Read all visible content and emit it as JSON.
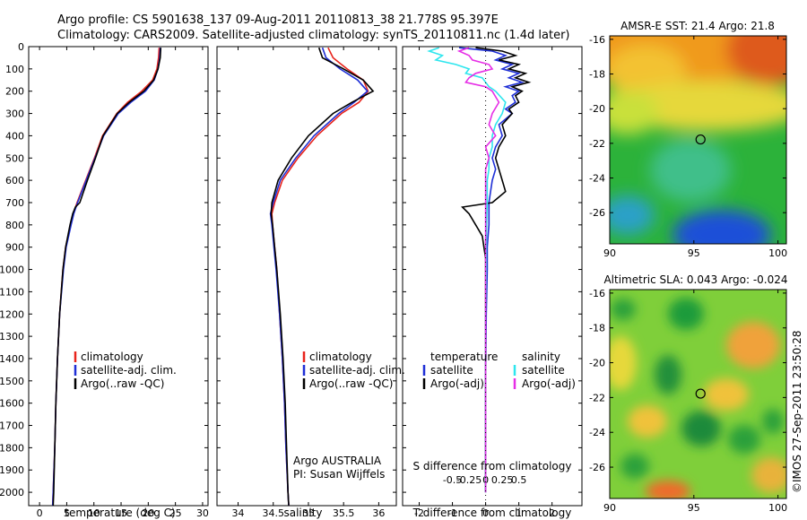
{
  "header": {
    "line1": "Argo profile: CS 5901638_137 09-Aug-2011 20110813_38 21.778S 95.397E",
    "line2": "Climatology: CARS2009. Satellite-adjusted climatology: synTS_20110811.nc (1.4d later)"
  },
  "colors": {
    "climatology": "#e8241c",
    "satellite": "#1f2fd6",
    "argo": "#000000",
    "sat_salt": "#2ee6ee",
    "argo_salt": "#e62ee6"
  },
  "chart_data": [
    {
      "type": "line",
      "panel": "temperature",
      "xlabel": "temperature (deg C)",
      "ylabel": "",
      "xlim": [
        -2,
        31
      ],
      "ylim": [
        2060,
        0
      ],
      "xticks": [
        0,
        5,
        10,
        15,
        20,
        25,
        30
      ],
      "yticks": [
        0,
        100,
        200,
        300,
        400,
        500,
        600,
        700,
        800,
        900,
        1000,
        1100,
        1200,
        1300,
        1400,
        1500,
        1600,
        1700,
        1800,
        1900,
        2000
      ],
      "legend": [
        "climatology",
        "satellite-adj. clim.",
        "Argo(..raw -QC)"
      ],
      "legend_position": "lower-right",
      "series": [
        {
          "name": "climatology",
          "color": "#e8241c",
          "depth": [
            5,
            50,
            100,
            150,
            200,
            250,
            300,
            400,
            500,
            600,
            700,
            750,
            800,
            900,
            1000,
            1200,
            1400,
            1600,
            1800,
            2000,
            2060
          ],
          "values": [
            22.0,
            21.9,
            21.6,
            20.8,
            18.8,
            16.2,
            14.2,
            11.6,
            10.1,
            8.5,
            6.9,
            6.2,
            5.7,
            4.8,
            4.3,
            3.7,
            3.3,
            3.0,
            2.8,
            2.5,
            2.4
          ]
        },
        {
          "name": "satellite-adj. clim.",
          "color": "#1f2fd6",
          "depth": [
            5,
            50,
            100,
            150,
            200,
            250,
            300,
            400,
            500,
            600,
            700,
            750,
            800,
            900,
            1000,
            1200,
            1400,
            1600,
            1800,
            2000,
            2060
          ],
          "values": [
            22.2,
            22.1,
            21.8,
            21.1,
            19.5,
            16.8,
            14.5,
            11.8,
            10.2,
            8.6,
            7.0,
            6.3,
            5.8,
            4.9,
            4.4,
            3.7,
            3.3,
            3.0,
            2.8,
            2.5,
            2.4
          ]
        },
        {
          "name": "Argo(..raw -QC)",
          "color": "#000000",
          "depth": [
            5,
            50,
            100,
            150,
            200,
            250,
            300,
            400,
            500,
            600,
            700,
            720,
            750,
            800,
            900,
            1000,
            1200,
            1400,
            1600,
            1800,
            2000,
            2060
          ],
          "values": [
            22.3,
            22.2,
            21.8,
            21.0,
            19.2,
            16.5,
            14.3,
            11.7,
            10.3,
            8.8,
            7.4,
            6.6,
            6.1,
            5.6,
            4.8,
            4.3,
            3.7,
            3.3,
            3.0,
            2.8,
            2.6,
            2.5
          ]
        }
      ]
    },
    {
      "type": "line",
      "panel": "salinity",
      "xlabel": "salinity",
      "xlim": [
        33.7,
        36.25
      ],
      "ylim": [
        2060,
        0
      ],
      "xticks": [
        34,
        34.5,
        35,
        35.5,
        36
      ],
      "legend": [
        "climatology",
        "satellite-adj. clim.",
        "Argo(..raw -QC)"
      ],
      "legend_position": "lower-right",
      "annotation": [
        "Argo AUSTRALIA",
        "PI: Susan Wijffels"
      ],
      "series": [
        {
          "name": "climatology",
          "color": "#e8241c",
          "depth": [
            5,
            50,
            100,
            150,
            200,
            250,
            300,
            400,
            500,
            600,
            700,
            750,
            800,
            900,
            1000,
            1200,
            1400,
            1600,
            1800,
            2000,
            2060
          ],
          "values": [
            35.28,
            35.35,
            35.55,
            35.78,
            35.85,
            35.72,
            35.47,
            35.12,
            34.85,
            34.63,
            34.52,
            34.48,
            34.49,
            34.52,
            34.55,
            34.59,
            34.63,
            34.66,
            34.68,
            34.71,
            34.72
          ]
        },
        {
          "name": "satellite-adj. clim.",
          "color": "#1f2fd6",
          "depth": [
            5,
            50,
            100,
            150,
            200,
            250,
            300,
            400,
            500,
            600,
            700,
            750,
            800,
            900,
            1000,
            1200,
            1400,
            1600,
            1800,
            2000,
            2060
          ],
          "values": [
            35.2,
            35.25,
            35.45,
            35.7,
            35.84,
            35.65,
            35.43,
            35.08,
            34.82,
            34.6,
            34.5,
            34.46,
            34.48,
            34.51,
            34.54,
            34.59,
            34.63,
            34.66,
            34.68,
            34.71,
            34.72
          ]
        },
        {
          "name": "Argo(..raw -QC)",
          "color": "#000000",
          "depth": [
            5,
            50,
            100,
            150,
            200,
            250,
            300,
            400,
            500,
            600,
            700,
            750,
            800,
            900,
            1000,
            1200,
            1400,
            1600,
            1800,
            2000,
            2060
          ],
          "values": [
            35.15,
            35.2,
            35.5,
            35.78,
            35.92,
            35.62,
            35.35,
            35.0,
            34.76,
            34.57,
            34.48,
            34.47,
            34.49,
            34.52,
            34.55,
            34.6,
            34.64,
            34.67,
            34.69,
            34.71,
            34.72
          ]
        }
      ]
    },
    {
      "type": "line",
      "panel": "difference",
      "xlabel": "T difference from climatology",
      "xlabel_top": "S difference from climatology",
      "xlim": [
        -2.5,
        2.9
      ],
      "ylim": [
        2060,
        0
      ],
      "xticks_T": [
        -2,
        -1,
        0,
        1,
        2
      ],
      "xticks_S": [
        -0.5,
        -0.25,
        0,
        0.25,
        0.5
      ],
      "legend_temperature_title": "temperature",
      "legend_salinity_title": "salinity",
      "legend_temperature": [
        "satellite",
        "Argo(-adj)"
      ],
      "legend_salinity": [
        "satellite",
        "Argo(-adj)"
      ],
      "series": [
        {
          "name": "satellite",
          "color": "#1f2fd6",
          "depth": [
            5,
            20,
            40,
            60,
            80,
            100,
            120,
            140,
            160,
            180,
            200,
            220,
            250,
            280,
            300,
            350,
            400,
            450,
            500,
            550,
            600,
            650,
            700,
            800,
            900,
            1000,
            1200,
            1500,
            2000
          ],
          "values": [
            -0.8,
            0.2,
            0.6,
            0.3,
            0.8,
            0.5,
            1.0,
            0.7,
            1.1,
            0.6,
            1.0,
            0.8,
            0.9,
            0.6,
            0.8,
            0.4,
            0.5,
            0.3,
            0.2,
            0.3,
            0.2,
            0.15,
            0.1,
            0.1,
            0.05,
            0.05,
            0.02,
            0.0,
            0.0
          ]
        },
        {
          "name": "Argo(-adj)",
          "color": "#000000",
          "depth": [
            5,
            20,
            40,
            60,
            80,
            100,
            120,
            140,
            160,
            180,
            200,
            220,
            250,
            280,
            300,
            350,
            400,
            450,
            500,
            550,
            600,
            650,
            700,
            720,
            750,
            800,
            850,
            900,
            950,
            1000,
            1200,
            1500,
            2000
          ],
          "values": [
            -0.3,
            0.5,
            0.9,
            0.4,
            1.0,
            0.7,
            1.2,
            0.9,
            1.3,
            0.8,
            1.1,
            0.9,
            1.0,
            0.7,
            0.8,
            0.5,
            0.6,
            0.4,
            0.3,
            0.4,
            0.5,
            0.6,
            0.2,
            -0.7,
            -0.5,
            -0.3,
            -0.1,
            -0.05,
            0.0,
            0.0,
            0.0,
            0.0,
            0.0
          ]
        },
        {
          "name": "satellite (salinity)",
          "color": "#2ee6ee",
          "depth": [
            5,
            20,
            40,
            60,
            80,
            100,
            120,
            140,
            160,
            180,
            200,
            250,
            300,
            350,
            400,
            450,
            500,
            550,
            600,
            700,
            800,
            900,
            1000,
            1200,
            1500,
            2000
          ],
          "values": [
            -1.4,
            -1.7,
            -1.3,
            -1.5,
            -0.9,
            -0.5,
            -0.6,
            -0.1,
            0.0,
            0.1,
            0.3,
            0.6,
            0.5,
            0.3,
            0.2,
            0.2,
            0.1,
            0.1,
            0.05,
            0.05,
            0.03,
            0.02,
            0.02,
            0.0,
            0.0,
            0.0
          ]
        },
        {
          "name": "Argo(-adj) (salinity)",
          "color": "#e62ee6",
          "depth": [
            5,
            20,
            40,
            60,
            80,
            100,
            120,
            140,
            160,
            180,
            200,
            250,
            300,
            350,
            400,
            450,
            500,
            550,
            600,
            700,
            800,
            900,
            1000,
            1200,
            1500,
            2000
          ],
          "values": [
            -0.5,
            -0.8,
            -0.5,
            -0.4,
            0.1,
            0.2,
            -0.3,
            -0.5,
            -0.6,
            0.0,
            0.2,
            0.4,
            0.2,
            0.1,
            0.3,
            0.0,
            0.1,
            0.0,
            0.0,
            0.0,
            0.0,
            0.0,
            0.0,
            0.0,
            0.0,
            0.0
          ]
        }
      ]
    },
    {
      "type": "heatmap",
      "panel": "sst_map",
      "title": "AMSR-E SST: 21.4  Argo: 21.8",
      "xlim": [
        90,
        100.5
      ],
      "ylim": [
        -27.8,
        -15.8
      ],
      "xticks": [
        90,
        95,
        100
      ],
      "yticks": [
        -16,
        -18,
        -20,
        -22,
        -24,
        -26
      ],
      "marker": {
        "lon": 95.397,
        "lat": -21.778
      }
    },
    {
      "type": "heatmap",
      "panel": "sla_map",
      "title": "Altimetric SLA: 0.043  Argo: -0.024",
      "xlim": [
        90,
        100.5
      ],
      "ylim": [
        -27.8,
        -15.8
      ],
      "xticks": [
        90,
        95,
        100
      ],
      "yticks": [
        -16,
        -18,
        -20,
        -22,
        -24,
        -26
      ],
      "marker": {
        "lon": 95.397,
        "lat": -21.778
      }
    }
  ],
  "credit": "©IMOS 27-Sep-2011 23:50:28"
}
